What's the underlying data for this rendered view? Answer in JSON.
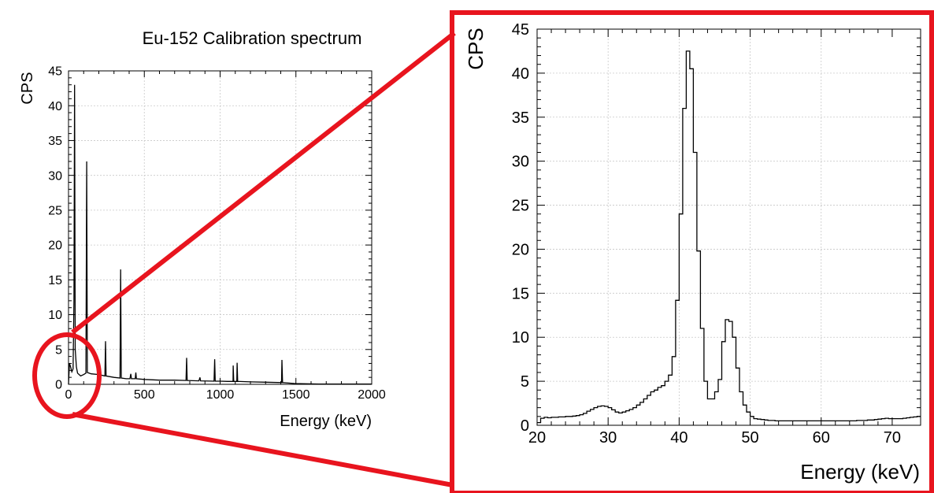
{
  "colors": {
    "zoom_highlight": "#e8141e",
    "line": "#000000",
    "grid": "#c8c8c8"
  },
  "chart_data": [
    {
      "type": "line",
      "title": "Eu-152 Calibration spectrum",
      "xlabel": "Energy (keV)",
      "ylabel": "CPS",
      "xlim": [
        0,
        2000
      ],
      "ylim": [
        0,
        45
      ],
      "xticks": [
        0,
        500,
        1000,
        1500,
        2000
      ],
      "yticks": [
        0,
        5,
        10,
        15,
        20,
        25,
        30,
        35,
        40,
        45
      ],
      "grid": true,
      "series": [
        {
          "values": [
            [
              0,
              0
            ],
            [
              6,
              3
            ],
            [
              14,
              2.5
            ],
            [
              22,
              1.8
            ],
            [
              30,
              2.2
            ],
            [
              36,
              12
            ],
            [
              40,
              43
            ],
            [
              44,
              5
            ],
            [
              52,
              2.5
            ],
            [
              60,
              1.6
            ],
            [
              80,
              1.2
            ],
            [
              100,
              1.4
            ],
            [
              115,
              1.6
            ],
            [
              120,
              32
            ],
            [
              124,
              1.7
            ],
            [
              150,
              1.5
            ],
            [
              200,
              1.4
            ],
            [
              240,
              1.2
            ],
            [
              244,
              6.2
            ],
            [
              248,
              1.2
            ],
            [
              300,
              1.0
            ],
            [
              340,
              0.9
            ],
            [
              344,
              16.5
            ],
            [
              348,
              0.9
            ],
            [
              380,
              0.8
            ],
            [
              405,
              0.8
            ],
            [
              411,
              1.5
            ],
            [
              415,
              0.8
            ],
            [
              440,
              0.8
            ],
            [
              444,
              1.7
            ],
            [
              448,
              0.8
            ],
            [
              500,
              0.7
            ],
            [
              600,
              0.6
            ],
            [
              700,
              0.6
            ],
            [
              775,
              0.55
            ],
            [
              779,
              3.8
            ],
            [
              783,
              0.55
            ],
            [
              860,
              0.5
            ],
            [
              867,
              1.0
            ],
            [
              871,
              0.5
            ],
            [
              960,
              0.45
            ],
            [
              964,
              3.6
            ],
            [
              968,
              0.45
            ],
            [
              1000,
              0.45
            ],
            [
              1050,
              0.42
            ],
            [
              1085,
              0.42
            ],
            [
              1086,
              2.7
            ],
            [
              1090,
              0.42
            ],
            [
              1110,
              0.42
            ],
            [
              1112,
              3.1
            ],
            [
              1116,
              0.42
            ],
            [
              1200,
              0.35
            ],
            [
              1300,
              0.3
            ],
            [
              1405,
              0.25
            ],
            [
              1408,
              3.5
            ],
            [
              1412,
              0.25
            ],
            [
              1500,
              0.1
            ],
            [
              1650,
              0.05
            ],
            [
              1800,
              0.05
            ],
            [
              2000,
              0.05
            ]
          ]
        }
      ]
    },
    {
      "type": "line",
      "xlabel": "Energy (keV)",
      "ylabel": "CPS",
      "xlim": [
        20,
        74
      ],
      "ylim": [
        0,
        45
      ],
      "xticks": [
        20,
        30,
        40,
        50,
        60,
        70
      ],
      "yticks": [
        0,
        5,
        10,
        15,
        20,
        25,
        30,
        35,
        40,
        45
      ],
      "grid": true,
      "series": [
        {
          "bin_start": 20,
          "bin_width": 0.5,
          "values": [
            0.3,
            0.8,
            0.9,
            0.85,
            0.9,
            0.9,
            0.95,
            0.95,
            1.0,
            1.0,
            1.05,
            1.1,
            1.2,
            1.35,
            1.6,
            1.8,
            2.0,
            2.15,
            2.2,
            2.15,
            2.0,
            1.75,
            1.5,
            1.4,
            1.5,
            1.65,
            1.8,
            2.0,
            2.3,
            2.6,
            3.0,
            3.4,
            3.8,
            4.0,
            4.3,
            4.5,
            5.0,
            5.7,
            7.8,
            14.2,
            24.0,
            36.0,
            42.5,
            40.5,
            31.0,
            19.8,
            11.0,
            5.0,
            3.0,
            3.0,
            3.8,
            5.2,
            9.5,
            12.0,
            11.8,
            10.0,
            6.5,
            3.8,
            2.3,
            1.5,
            1.0,
            0.75,
            0.7,
            0.65,
            0.6,
            0.55,
            0.55,
            0.5,
            0.5,
            0.5,
            0.5,
            0.5,
            0.5,
            0.5,
            0.5,
            0.5,
            0.5,
            0.5,
            0.5,
            0.5,
            0.5,
            0.5,
            0.5,
            0.5,
            0.5,
            0.5,
            0.5,
            0.5,
            0.5,
            0.5,
            0.55,
            0.55,
            0.55,
            0.6,
            0.6,
            0.65,
            0.7,
            0.75,
            0.8,
            0.75,
            0.75,
            0.75,
            0.75,
            0.8,
            0.85,
            0.9,
            0.95,
            1.0
          ]
        }
      ]
    }
  ]
}
